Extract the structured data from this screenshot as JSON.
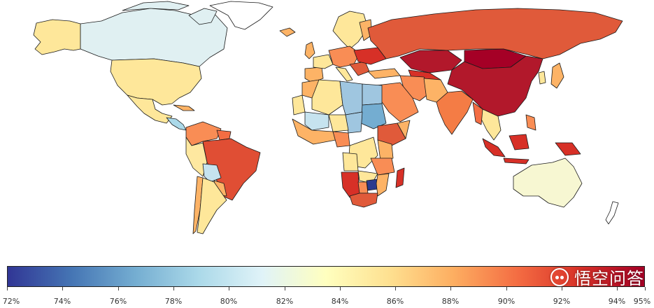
{
  "map": {
    "type": "choropleth",
    "subject": "world map by country",
    "colors": {
      "ocean": "#ffffff",
      "border": "#1a1a1a",
      "china": "#b2182b",
      "russia": "#e05a3a",
      "brazil": "#e04e34",
      "usa": "#fee79a",
      "canada": "#e0f0f2",
      "australia": "#f7f7d2",
      "sahara_blue": "#9fc6e0",
      "zimbabwe": "#2c3a8e",
      "india": "#f47c45"
    }
  },
  "legend": {
    "tick_labels": [
      "72%",
      "74%",
      "76%",
      "78%",
      "80%",
      "82%",
      "84%",
      "86%",
      "88%",
      "90%",
      "92%",
      "94%",
      "95%"
    ],
    "range": [
      72,
      95
    ],
    "gradient": [
      "#313695",
      "#4575b4",
      "#74add1",
      "#abd9e9",
      "#e0f3f8",
      "#ffffbf",
      "#fee090",
      "#fdae61",
      "#f46d43",
      "#d73027",
      "#a50026"
    ]
  },
  "watermark": {
    "text": "悟空问答",
    "icon": "chat-bubble-icon"
  }
}
